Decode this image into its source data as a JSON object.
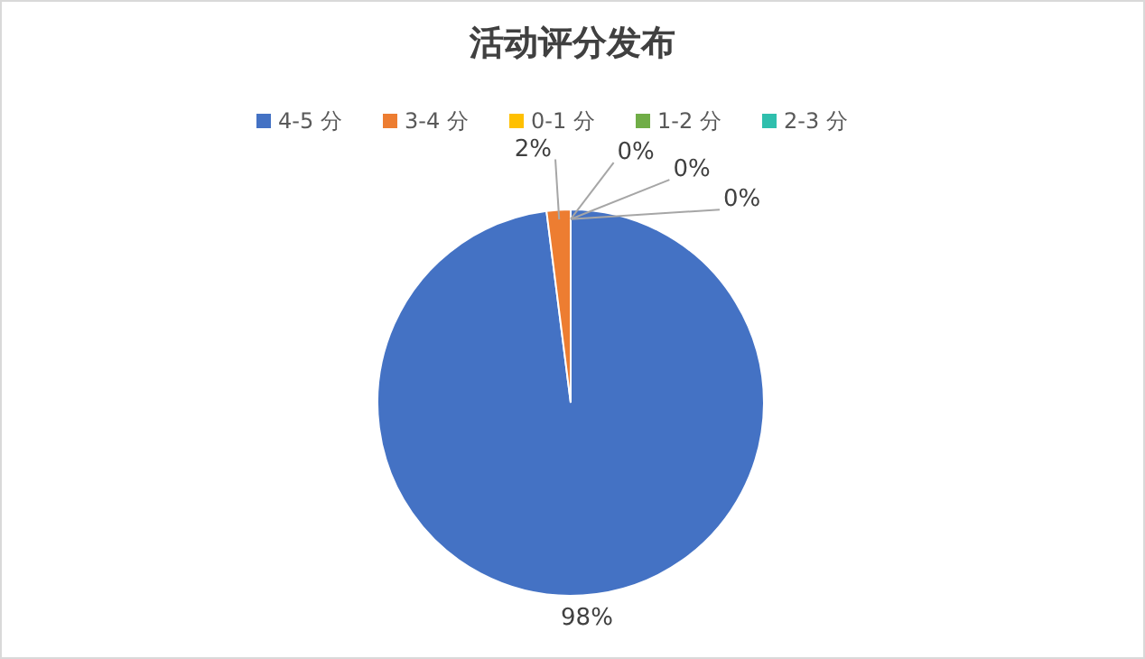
{
  "chart_data": {
    "type": "pie",
    "title": "活动评分发布",
    "categories": [
      "4-5 分",
      "3-4 分",
      "0-1 分",
      "1-2 分",
      "2-3 分"
    ],
    "values": [
      98,
      2,
      0,
      0,
      0
    ],
    "colors": [
      "#4472c4",
      "#ed7d31",
      "#ffc000",
      "#70ad47",
      "#2fbfad"
    ],
    "value_labels": [
      "98%",
      "2%",
      "0%",
      "0%",
      "0%"
    ],
    "legend": "top"
  }
}
